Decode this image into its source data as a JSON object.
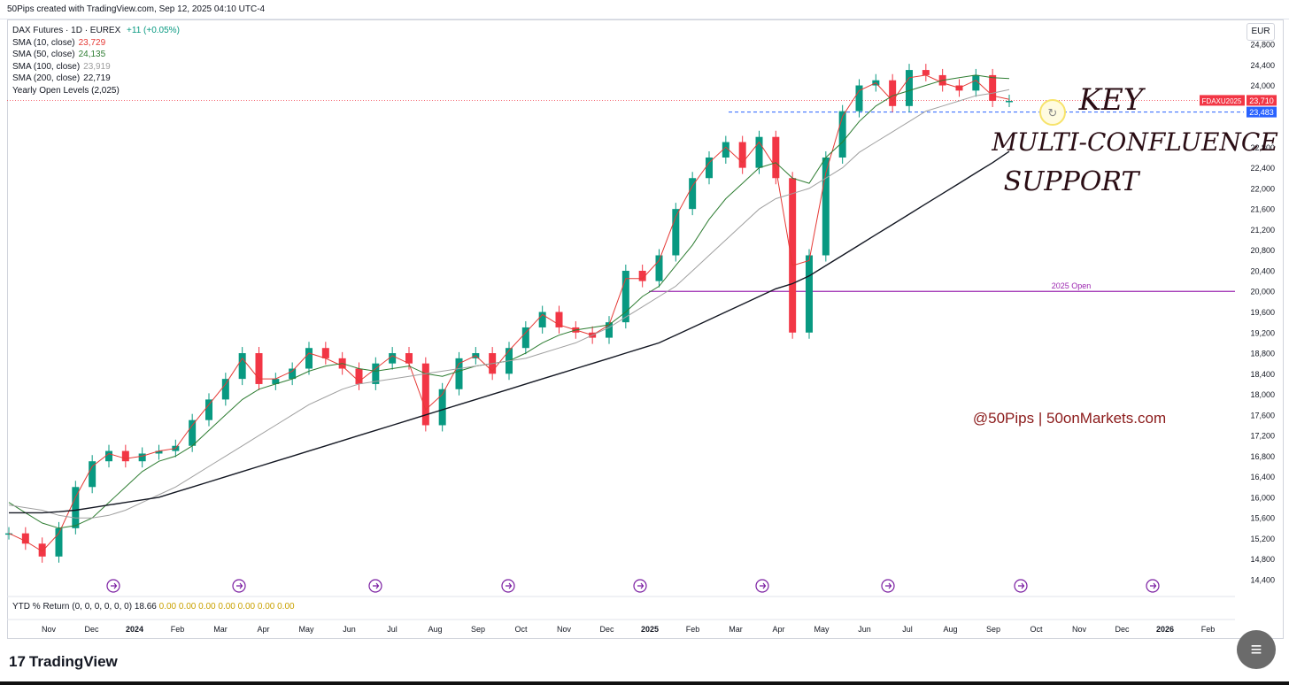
{
  "header": {
    "text": "50Pips created with TradingView.com, Sep 12, 2025 04:10 UTC-4"
  },
  "legend": {
    "symbol": "DAX Futures · 1D · EUREX",
    "change": "+11 (+0.05%)",
    "rows": [
      {
        "label": "SMA (10, close)",
        "value": "23,729",
        "color": "#e53935"
      },
      {
        "label": "SMA (50, close)",
        "value": "24,135",
        "color": "#2e7d32"
      },
      {
        "label": "SMA (100, close)",
        "value": "23,919",
        "color": "#9e9e9e"
      },
      {
        "label": "SMA (200, close)",
        "value": "22,719",
        "color": "#131722"
      },
      {
        "label": "Yearly Open Levels (2,025)",
        "value": "",
        "color": "#131722"
      }
    ]
  },
  "currency": "EUR",
  "price_tags": {
    "symbol_tag": "FDAXU2025",
    "last_price": "23,710",
    "support": "23,483"
  },
  "open_label": "2025 Open",
  "annotation": {
    "line1": "KEY",
    "line2": "MULTI-CONFLUENCE",
    "line3": "SUPPORT"
  },
  "watermark": "@50Pips | 50onMarkets.com",
  "ytd": {
    "label": "YTD % Return (0, 0, 0, 0, 0, 0)",
    "value": "18.66",
    "zeros": "0.00  0.00  0.00  0.00  0.00  0.00  0.00"
  },
  "footer": {
    "brand": "TradingView"
  },
  "colors": {
    "up": "#089981",
    "down": "#f23645",
    "sma10": "#e53935",
    "sma50": "#2e7d32",
    "sma100": "#a0a0a0",
    "sma200": "#131722",
    "open": "#9c27b0",
    "support": "#2962ff"
  },
  "chart_data": {
    "type": "line",
    "title": "DAX Futures · 1D · EUREX",
    "ylim": [
      14400,
      24800
    ],
    "yticks": [
      14400,
      14800,
      15200,
      15600,
      16000,
      16400,
      16800,
      17200,
      17600,
      18000,
      18400,
      18800,
      19200,
      19600,
      20000,
      20400,
      20800,
      21200,
      21600,
      22000,
      22400,
      22800,
      23200,
      23600,
      24000,
      24400,
      24800
    ],
    "ytick_labels": [
      "14,400",
      "14,800",
      "15,200",
      "15,600",
      "16,000",
      "16,400",
      "16,800",
      "17,200",
      "17,600",
      "18,000",
      "18,400",
      "18,800",
      "19,200",
      "19,600",
      "20,000",
      "20,400",
      "20,800",
      "21,200",
      "21,600",
      "22,000",
      "22,400",
      "22,800",
      "",
      "",
      "24,000",
      "24,400",
      "24,800"
    ],
    "xtick_labels": [
      "Nov",
      "Dec",
      "2024",
      "Feb",
      "Mar",
      "Apr",
      "May",
      "Jun",
      "Jul",
      "Aug",
      "Sep",
      "Oct",
      "Nov",
      "Dec",
      "2025",
      "Feb",
      "Mar",
      "Apr",
      "May",
      "Jun",
      "Jul",
      "Aug",
      "Sep",
      "Oct",
      "Nov",
      "Dec",
      "2026",
      "Feb"
    ],
    "x_range_months": [
      "2023-10",
      "2026-02"
    ],
    "series": [
      {
        "name": "DAX Futures",
        "values": [
          15300,
          15100,
          14850,
          15400,
          16200,
          16700,
          16900,
          16700,
          16850,
          16900,
          17000,
          17500,
          17900,
          18300,
          18800,
          18200,
          18300,
          18500,
          18900,
          18700,
          18500,
          18200,
          18600,
          18800,
          18600,
          17400,
          18100,
          18700,
          18800,
          18400,
          18900,
          19300,
          19600,
          19300,
          19200,
          19100,
          19400,
          20400,
          20200,
          20700,
          21600,
          22200,
          22600,
          22900,
          22400,
          23000,
          22200,
          19200,
          20700,
          22600,
          23500,
          24000,
          24100,
          23600,
          24300,
          24200,
          24000,
          23900,
          24200,
          23700,
          23700
        ]
      },
      {
        "name": "SMA (10, close)",
        "values": [
          15300,
          15150,
          14950,
          15300,
          16000,
          16600,
          16850,
          16750,
          16800,
          16900,
          16950,
          17400,
          17800,
          18200,
          18700,
          18300,
          18300,
          18450,
          18800,
          18700,
          18550,
          18250,
          18500,
          18750,
          18600,
          17700,
          18000,
          18600,
          18750,
          18450,
          18850,
          19200,
          19550,
          19350,
          19250,
          19150,
          19350,
          20250,
          20250,
          20600,
          21450,
          22050,
          22500,
          22800,
          22500,
          22900,
          22400,
          20500,
          20600,
          22300,
          23400,
          23900,
          24050,
          23700,
          24150,
          24200,
          24050,
          23950,
          24100,
          23800,
          23729
        ]
      },
      {
        "name": "SMA (50, close)",
        "values": [
          15900,
          15700,
          15500,
          15400,
          15450,
          15600,
          15900,
          16200,
          16500,
          16700,
          16800,
          17000,
          17300,
          17600,
          17900,
          18100,
          18200,
          18300,
          18450,
          18550,
          18600,
          18500,
          18450,
          18500,
          18550,
          18400,
          18350,
          18450,
          18550,
          18600,
          18650,
          18800,
          19000,
          19150,
          19250,
          19300,
          19350,
          19600,
          19900,
          20100,
          20500,
          20900,
          21400,
          21800,
          22100,
          22400,
          22500,
          22200,
          22100,
          22600,
          22900,
          23300,
          23600,
          23800,
          23900,
          24000,
          24100,
          24150,
          24200,
          24150,
          24135
        ]
      },
      {
        "name": "SMA (100, close)",
        "values": [
          15850,
          15800,
          15750,
          15650,
          15600,
          15600,
          15650,
          15750,
          15900,
          16050,
          16200,
          16400,
          16600,
          16800,
          17000,
          17200,
          17400,
          17600,
          17800,
          17950,
          18100,
          18200,
          18250,
          18300,
          18350,
          18400,
          18450,
          18500,
          18550,
          18600,
          18650,
          18700,
          18800,
          18900,
          19000,
          19150,
          19300,
          19500,
          19700,
          19900,
          20100,
          20400,
          20700,
          21000,
          21300,
          21600,
          21800,
          21900,
          22000,
          22200,
          22400,
          22700,
          22900,
          23100,
          23300,
          23500,
          23600,
          23700,
          23800,
          23850,
          23919
        ]
      },
      {
        "name": "SMA (200, close)",
        "values": [
          15700,
          15700,
          15700,
          15720,
          15750,
          15800,
          15850,
          15900,
          15950,
          16000,
          16100,
          16200,
          16300,
          16400,
          16500,
          16600,
          16700,
          16800,
          16900,
          17000,
          17100,
          17200,
          17300,
          17400,
          17500,
          17600,
          17700,
          17800,
          17900,
          18000,
          18100,
          18200,
          18300,
          18400,
          18500,
          18600,
          18700,
          18800,
          18900,
          19000,
          19150,
          19300,
          19450,
          19600,
          19750,
          19900,
          20050,
          20150,
          20300,
          20500,
          20700,
          20900,
          21100,
          21300,
          21500,
          21700,
          21900,
          22100,
          22300,
          22500,
          22719
        ]
      }
    ],
    "horizontal_lines": [
      {
        "name": "2025 Open",
        "value": 20000
      },
      {
        "name": "Support",
        "value": 23483
      },
      {
        "name": "Last",
        "value": 23710
      }
    ]
  }
}
